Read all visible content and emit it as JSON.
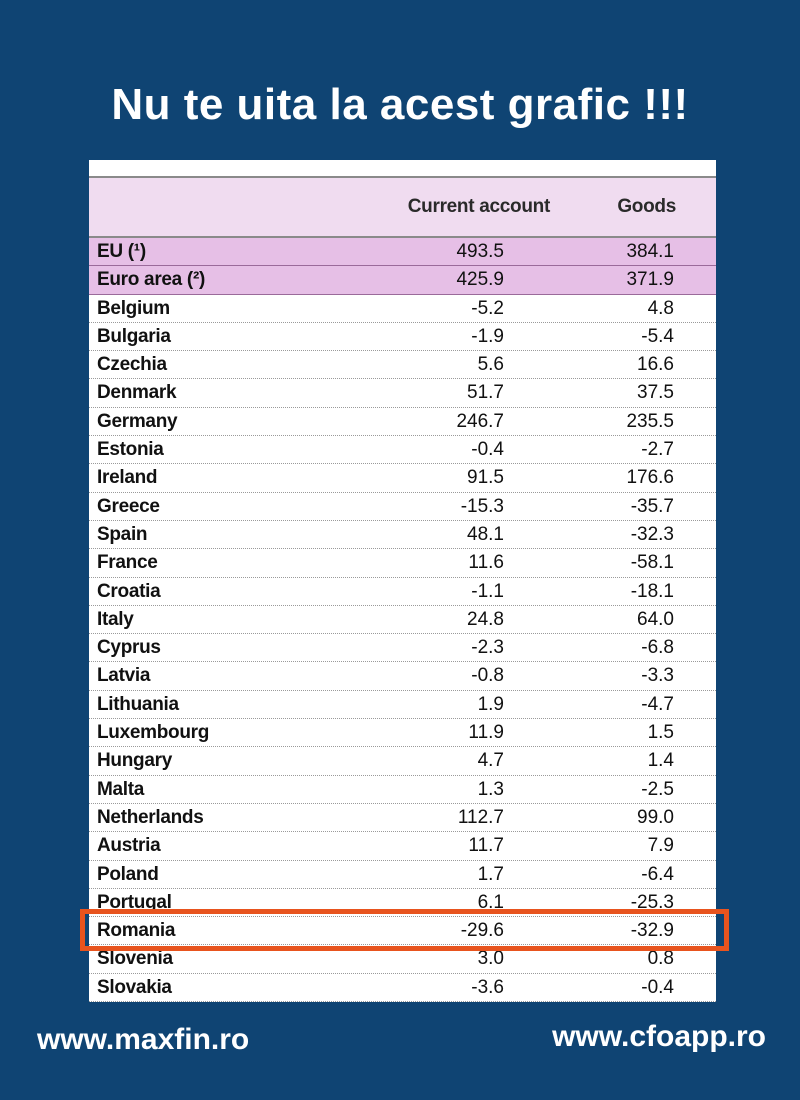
{
  "title": "Nu te uita la acest grafic !!!",
  "footer": {
    "left": "www.maxfin.ro",
    "right": "www.cfoapp.ro"
  },
  "colors": {
    "background": "#0f4473",
    "header": "#f0dcf0",
    "aggregate_rows": "#e6bfe6",
    "highlight": "#e8541e"
  },
  "chart_data": {
    "type": "table",
    "columns": [
      "",
      "Current account",
      "Goods"
    ],
    "highlighted_row": "Romania",
    "rows": [
      {
        "name": "EU (¹)",
        "current_account": "493.5",
        "goods": "384.1",
        "aggregate": true
      },
      {
        "name": "Euro area (²)",
        "current_account": "425.9",
        "goods": "371.9",
        "aggregate": true
      },
      {
        "name": "Belgium",
        "current_account": "-5.2",
        "goods": "4.8"
      },
      {
        "name": "Bulgaria",
        "current_account": "-1.9",
        "goods": "-5.4"
      },
      {
        "name": "Czechia",
        "current_account": "5.6",
        "goods": "16.6"
      },
      {
        "name": "Denmark",
        "current_account": "51.7",
        "goods": "37.5"
      },
      {
        "name": "Germany",
        "current_account": "246.7",
        "goods": "235.5"
      },
      {
        "name": "Estonia",
        "current_account": "-0.4",
        "goods": "-2.7"
      },
      {
        "name": "Ireland",
        "current_account": "91.5",
        "goods": "176.6"
      },
      {
        "name": "Greece",
        "current_account": "-15.3",
        "goods": "-35.7"
      },
      {
        "name": "Spain",
        "current_account": "48.1",
        "goods": "-32.3"
      },
      {
        "name": "France",
        "current_account": "11.6",
        "goods": "-58.1"
      },
      {
        "name": "Croatia",
        "current_account": "-1.1",
        "goods": "-18.1"
      },
      {
        "name": "Italy",
        "current_account": "24.8",
        "goods": "64.0"
      },
      {
        "name": "Cyprus",
        "current_account": "-2.3",
        "goods": "-6.8"
      },
      {
        "name": "Latvia",
        "current_account": "-0.8",
        "goods": "-3.3"
      },
      {
        "name": "Lithuania",
        "current_account": "1.9",
        "goods": "-4.7"
      },
      {
        "name": "Luxembourg",
        "current_account": "11.9",
        "goods": "1.5"
      },
      {
        "name": "Hungary",
        "current_account": "4.7",
        "goods": "1.4"
      },
      {
        "name": "Malta",
        "current_account": "1.3",
        "goods": "-2.5"
      },
      {
        "name": "Netherlands",
        "current_account": "112.7",
        "goods": "99.0"
      },
      {
        "name": "Austria",
        "current_account": "11.7",
        "goods": "7.9"
      },
      {
        "name": "Poland",
        "current_account": "1.7",
        "goods": "-6.4"
      },
      {
        "name": "Portugal",
        "current_account": "6.1",
        "goods": "-25.3"
      },
      {
        "name": "Romania",
        "current_account": "-29.6",
        "goods": "-32.9"
      },
      {
        "name": "Slovenia",
        "current_account": "3.0",
        "goods": "0.8"
      },
      {
        "name": "Slovakia",
        "current_account": "-3.6",
        "goods": "-0.4"
      }
    ]
  }
}
